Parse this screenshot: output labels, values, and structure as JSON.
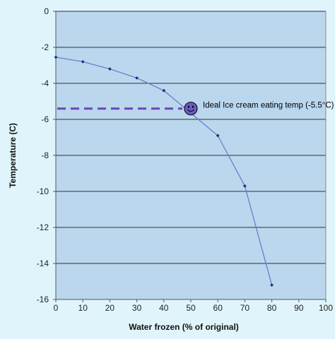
{
  "chart_data": {
    "type": "line",
    "xlabel": "Water frozen (% of original)",
    "ylabel": "Temperature (C)",
    "xlim": [
      0,
      100
    ],
    "ylim": [
      -16,
      0
    ],
    "x_ticks": [
      0,
      10,
      20,
      30,
      40,
      50,
      60,
      70,
      80,
      90,
      100
    ],
    "y_ticks": [
      0,
      -2,
      -4,
      -6,
      -8,
      -10,
      -12,
      -14,
      -16
    ],
    "grid": "horizontal",
    "series": [
      {
        "x": [
          0,
          10,
          20,
          30,
          40,
          60,
          70,
          80
        ],
        "y": [
          -2.55,
          -2.8,
          -3.2,
          -3.7,
          -4.4,
          -6.9,
          -9.7,
          -15.2
        ]
      }
    ],
    "annotation": {
      "text": "Ideal Ice cream eating temp (-5.5°C)",
      "x": 50,
      "y": -5.4,
      "marker": "smiley"
    },
    "colors": {
      "plot_bg": "#bad7ee",
      "page_bg": "#dff5fb",
      "line": "#6a7fc9",
      "marker": "#1d2b84",
      "dashed": "#6a45b8",
      "smiley_face": "#6b5cc8",
      "grid": "#303030"
    }
  }
}
